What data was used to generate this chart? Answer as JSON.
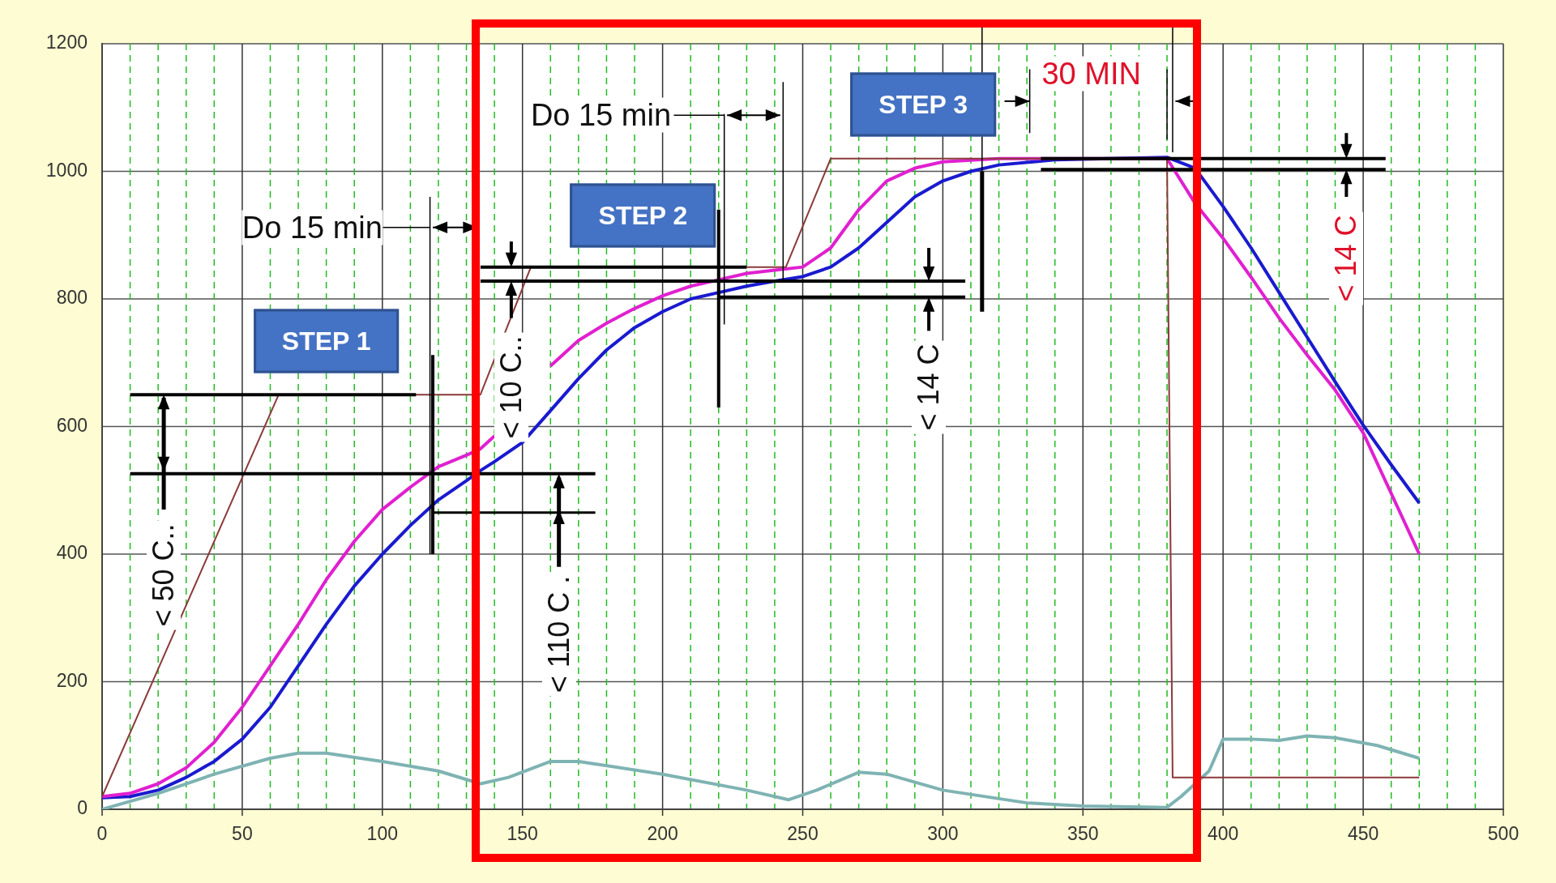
{
  "chart_data": {
    "type": "line",
    "marker": "none",
    "grid": true,
    "xlim": [
      0,
      500
    ],
    "xticks": [
      0,
      {
        "value": 10,
        "label": null
      },
      {
        "value": 20,
        "label": null
      },
      {
        "value": 30,
        "label": null
      },
      {
        "value": 40,
        "label": null
      },
      50,
      {
        "value": 60,
        "label": null
      },
      {
        "value": 70,
        "label": null
      },
      {
        "value": 80,
        "label": null
      },
      {
        "value": 90,
        "label": null
      },
      100,
      {
        "value": 110,
        "label": null
      },
      {
        "value": 120,
        "label": null
      },
      {
        "value": 130,
        "label": null
      },
      {
        "value": 140,
        "label": null
      },
      150,
      {
        "value": 160,
        "label": null
      },
      {
        "value": 170,
        "label": null
      },
      {
        "value": 180,
        "label": null
      },
      {
        "value": 190,
        "label": null
      },
      200,
      {
        "value": 210,
        "label": null
      },
      {
        "value": 220,
        "label": null
      },
      {
        "value": 230,
        "label": null
      },
      {
        "value": 240,
        "label": null
      },
      250,
      {
        "value": 260,
        "label": null
      },
      {
        "value": 270,
        "label": null
      },
      {
        "value": 280,
        "label": null
      },
      {
        "value": 290,
        "label": null
      },
      300,
      {
        "value": 310,
        "label": null
      },
      {
        "value": 320,
        "label": null
      },
      {
        "value": 330,
        "label": null
      },
      {
        "value": 340,
        "label": null
      },
      350,
      {
        "value": 360,
        "label": null
      },
      {
        "value": 370,
        "label": null
      },
      {
        "value": 380,
        "label": null
      },
      {
        "value": 390,
        "label": null
      },
      400,
      {
        "value": 410,
        "label": null
      },
      {
        "value": 420,
        "label": null
      },
      {
        "value": 430,
        "label": null
      },
      {
        "value": 440,
        "label": null
      },
      450,
      {
        "value": 460,
        "label": null
      },
      {
        "value": 470,
        "label": null
      },
      {
        "value": 480,
        "label": null
      },
      {
        "value": 490,
        "label": null
      },
      500
    ],
    "ylim": [
      0,
      1200
    ],
    "yticks": [
      0,
      200,
      400,
      600,
      800,
      1000,
      1200
    ],
    "series": [
      {
        "color": "#8b3a3a",
        "x": [
          0,
          63,
          135,
          153,
          244,
          260,
          380,
          382,
          470
        ],
        "values": [
          20,
          650,
          650,
          850,
          850,
          1020,
          1020,
          50,
          50
        ]
      },
      {
        "color": "#7fb3b3",
        "x": [
          0,
          20,
          40,
          60,
          70,
          80,
          100,
          120,
          135,
          145,
          160,
          170,
          200,
          230,
          245,
          255,
          270,
          280,
          300,
          330,
          350,
          380,
          385,
          395,
          400,
          410,
          420,
          430,
          440,
          455,
          470
        ],
        "values": [
          0,
          25,
          55,
          80,
          88,
          88,
          75,
          60,
          40,
          50,
          75,
          75,
          55,
          30,
          15,
          30,
          58,
          55,
          30,
          10,
          5,
          3,
          20,
          60,
          110,
          110,
          108,
          115,
          112,
          100,
          80
        ]
      },
      {
        "color": "#e020d0",
        "x": [
          0,
          10,
          20,
          30,
          40,
          50,
          60,
          70,
          80,
          90,
          100,
          110,
          120,
          130,
          135,
          140,
          150,
          160,
          170,
          180,
          190,
          200,
          210,
          220,
          230,
          240,
          250,
          260,
          270,
          280,
          290,
          300,
          320,
          380,
          390,
          400,
          410,
          420,
          430,
          440,
          450,
          460,
          470
        ],
        "values": [
          20,
          25,
          40,
          65,
          105,
          160,
          225,
          290,
          360,
          420,
          470,
          505,
          537,
          555,
          565,
          585,
          null,
          695,
          735,
          762,
          785,
          805,
          820,
          830,
          840,
          845,
          850,
          880,
          940,
          985,
          1005,
          1015,
          1020,
          1020,
          950,
          895,
          834,
          770,
          712,
          657,
          590,
          495,
          400
        ]
      },
      {
        "color": "#1a1ad0",
        "x": [
          0,
          10,
          20,
          30,
          40,
          50,
          60,
          70,
          80,
          90,
          100,
          110,
          120,
          130,
          135,
          140,
          150,
          160,
          170,
          180,
          190,
          200,
          210,
          220,
          230,
          240,
          250,
          260,
          270,
          280,
          290,
          300,
          310,
          320,
          340,
          380,
          390,
          400,
          410,
          420,
          430,
          440,
          450,
          460,
          470
        ],
        "values": [
          18,
          20,
          30,
          50,
          75,
          110,
          160,
          225,
          290,
          350,
          400,
          445,
          485,
          515,
          531,
          545,
          575,
          625,
          675,
          720,
          755,
          780,
          800,
          810,
          820,
          828,
          835,
          850,
          880,
          920,
          960,
          985,
          1000,
          1010,
          1018,
          1022,
          1005,
          945,
          880,
          810,
          740,
          670,
          602,
          540,
          480
        ]
      }
    ],
    "annotations": [
      "STEP 1",
      "STEP 2",
      "STEP 3",
      "Do 15 min",
      "Do 15 min",
      "30 MIN",
      "< 50 C..",
      "< 110 C .",
      "< 10 C..",
      "< 14 C",
      "< 14 C"
    ]
  }
}
